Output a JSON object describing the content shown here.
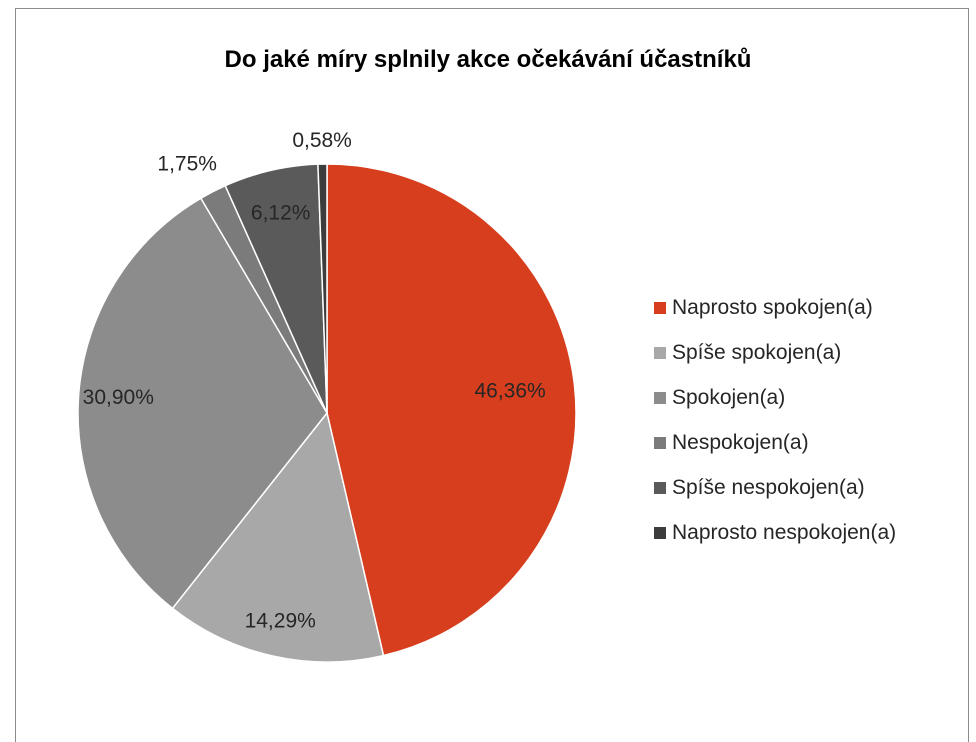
{
  "chart_data": {
    "type": "pie",
    "title": "Do jaké míry splnily akce očekávání účastníků",
    "legend_position": "right",
    "slices": [
      {
        "label": "Naprosto spokojen(a)",
        "value": 46.36,
        "data_label": "46,36%",
        "color": "#d63e1e"
      },
      {
        "label": "Spíše spokojen(a)",
        "value": 14.29,
        "data_label": "14,29%",
        "color": "#a8a8a8"
      },
      {
        "label": "Spokojen(a)",
        "value": 30.9,
        "data_label": "30,90%",
        "color": "#8c8c8c"
      },
      {
        "label": "Nespokojen(a)",
        "value": 1.75,
        "data_label": "1,75%",
        "color": "#7b7b7b"
      },
      {
        "label": "Spíše nespokojen(a)",
        "value": 6.12,
        "data_label": "6,12%",
        "color": "#5a5a5a"
      },
      {
        "label": "Naprosto nespokojen(a)",
        "value": 0.58,
        "data_label": "0,58%",
        "color": "#3c3c3c"
      }
    ]
  }
}
